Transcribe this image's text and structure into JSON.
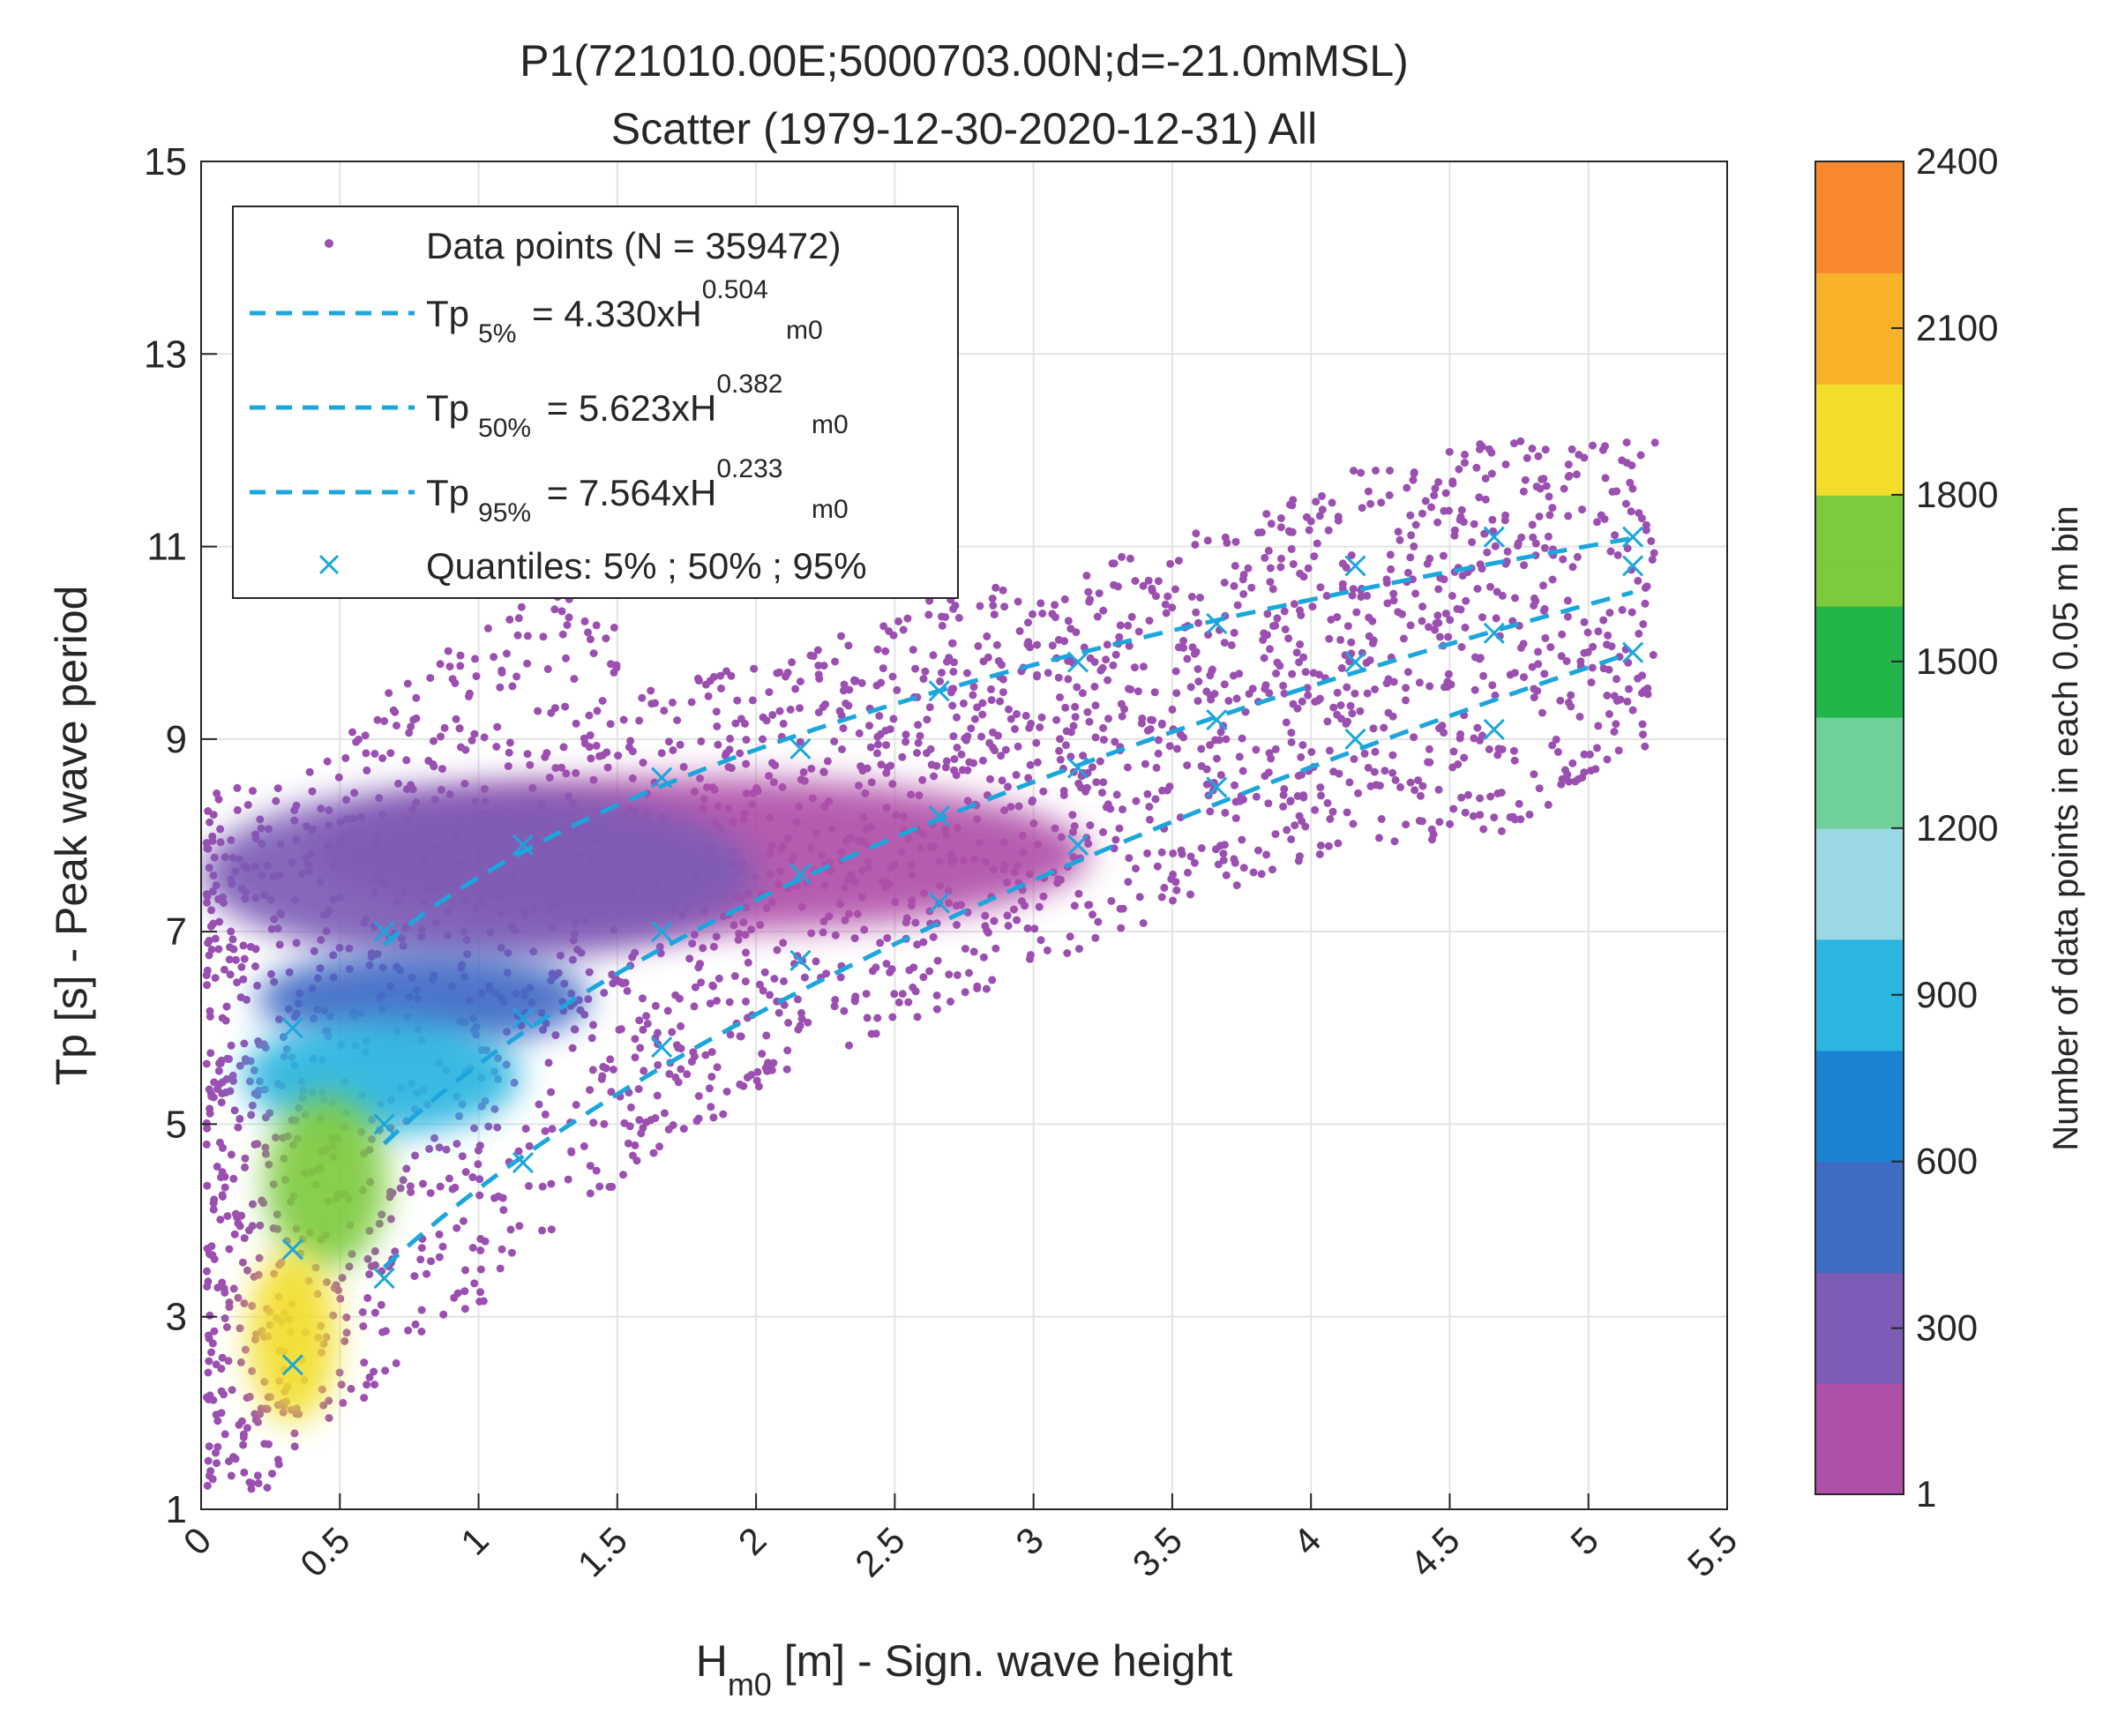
{
  "chart_data": {
    "type": "scatter",
    "title": "P1(721010.00E;5000703.00N;d=-21.0mMSL)",
    "subtitle": "Scatter (1979-12-30-2020-12-31) All",
    "xlabel": {
      "main": "H",
      "sub": "m0",
      "rest": " [m] - Sign. wave height"
    },
    "ylabel": "Tp [s] - Peak wave period",
    "xlim": [
      0,
      5.5
    ],
    "ylim": [
      1,
      15
    ],
    "xticks": [
      0,
      0.5,
      1,
      1.5,
      2,
      2.5,
      3,
      3.5,
      4,
      4.5,
      5,
      5.5
    ],
    "xtick_labels": [
      "0",
      "0.5",
      "1",
      "1.5",
      "2",
      "2.5",
      "3",
      "3.5",
      "4",
      "4.5",
      "5",
      "5.5"
    ],
    "yticks": [
      1,
      3,
      5,
      7,
      9,
      11,
      13,
      15
    ],
    "ytick_labels": [
      "1",
      "3",
      "5",
      "7",
      "9",
      "11",
      "13",
      "15"
    ],
    "grid": true,
    "legend_position": "top-left",
    "legend": {
      "data_points": "Data points (N = 359472)",
      "q05": {
        "tp": "Tp",
        "sub": "5%",
        "eq": " = 4.330xH",
        "exp": "0.504",
        "hsub": "m0"
      },
      "q50": {
        "tp": "Tp",
        "sub": "50%",
        "eq": " = 5.623xH",
        "exp": "0.382",
        "hsub": "m0"
      },
      "q95": {
        "tp": "Tp",
        "sub": "95%",
        "eq": " = 7.564xH",
        "exp": "0.233",
        "hsub": "m0"
      },
      "quantiles": "Quantiles: 5% ; 50% ; 95%"
    },
    "series": [
      {
        "name": "Tp 5%",
        "a": 4.33,
        "b": 0.504,
        "style": "dashed",
        "color": "#1ca6dc"
      },
      {
        "name": "Tp 50%",
        "a": 5.623,
        "b": 0.382,
        "style": "dashed",
        "color": "#1ca6dc"
      },
      {
        "name": "Tp 95%",
        "a": 7.564,
        "b": 0.233,
        "style": "dashed",
        "color": "#1ca6dc"
      }
    ],
    "quantile_points": {
      "x": [
        0.33,
        0.66,
        1.16,
        1.66,
        2.16,
        2.66,
        3.16,
        3.66,
        4.16,
        4.66,
        5.16
      ],
      "q05": [
        2.5,
        3.4,
        4.6,
        5.8,
        6.7,
        7.3,
        7.9,
        8.5,
        9.0,
        9.1,
        9.9
      ],
      "q50": [
        3.7,
        5.0,
        6.1,
        7.0,
        7.6,
        8.2,
        8.7,
        9.2,
        9.8,
        10.1,
        10.8
      ],
      "q95": [
        6.0,
        7.0,
        7.9,
        8.6,
        8.9,
        9.5,
        9.8,
        10.2,
        10.8,
        11.1,
        11.1
      ]
    },
    "density_blobs": [
      {
        "x": 0.33,
        "y": 2.8,
        "rx": 0.16,
        "ry": 0.9,
        "level": 1900
      },
      {
        "x": 0.45,
        "y": 4.4,
        "rx": 0.22,
        "ry": 0.9,
        "level": 1700
      },
      {
        "x": 0.65,
        "y": 5.5,
        "rx": 0.5,
        "ry": 0.6,
        "level": 800
      },
      {
        "x": 0.8,
        "y": 6.3,
        "rx": 0.6,
        "ry": 0.5,
        "level": 500
      },
      {
        "x": 1.0,
        "y": 7.6,
        "rx": 1.0,
        "ry": 0.9,
        "level": 150
      },
      {
        "x": 1.8,
        "y": 7.8,
        "rx": 1.4,
        "ry": 0.8,
        "level": 50
      }
    ],
    "colorbar": {
      "label": "Number of data points in each 0.05 m bin",
      "range": [
        1,
        2400
      ],
      "ticks": [
        1,
        300,
        600,
        900,
        1200,
        1500,
        1800,
        2100,
        2400
      ],
      "tick_labels": [
        "1",
        "300",
        "600",
        "900",
        "1200",
        "1500",
        "1800",
        "2100",
        "2400"
      ],
      "colors": [
        "#b04fa8",
        "#7c5cb6",
        "#3f6bc4",
        "#1a84d2",
        "#2bb5e0",
        "#9ad9e4",
        "#6fd09a",
        "#22b54a",
        "#7dcb3c",
        "#f2de2a",
        "#f8b22a",
        "#f8882e"
      ]
    }
  },
  "colors": {
    "scatter": "#9b4fb0",
    "quantile_line": "#1ca6dc",
    "grid": "#e3e3e3",
    "axis": "#262626"
  }
}
